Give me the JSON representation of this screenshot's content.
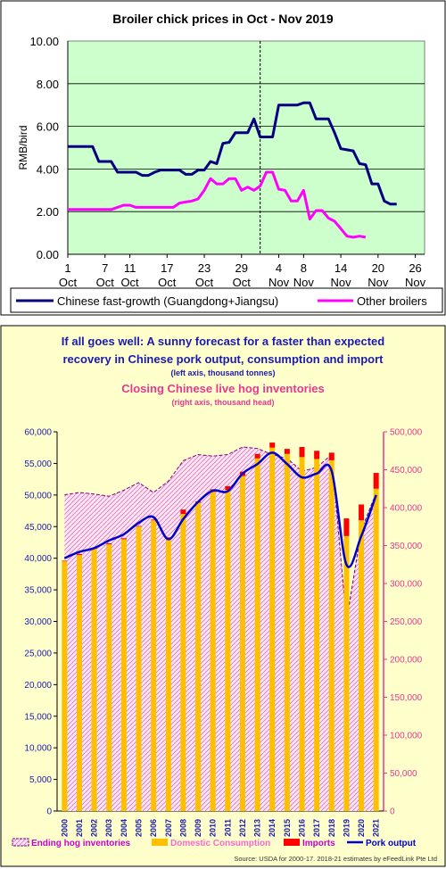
{
  "chart_data": [
    {
      "type": "line",
      "title": "Broiler chick prices in Oct - Nov 2019",
      "ylabel": "RMB/bird",
      "xlabel": "",
      "ylim": [
        0,
        10
      ],
      "yticks": [
        "0.00",
        "2.00",
        "4.00",
        "6.00",
        "8.00",
        "10.00"
      ],
      "xticks": [
        {
          "day": 1,
          "top": "1",
          "bottom": "Oct"
        },
        {
          "day": 7,
          "top": "7",
          "bottom": "Oct"
        },
        {
          "day": 11,
          "top": "11",
          "bottom": "Oct"
        },
        {
          "day": 17,
          "top": "17",
          "bottom": "Oct"
        },
        {
          "day": 23,
          "top": "23",
          "bottom": "Oct"
        },
        {
          "day": 29,
          "top": "29",
          "bottom": "Oct"
        },
        {
          "day": 35,
          "top": "4",
          "bottom": "Nov"
        },
        {
          "day": 39,
          "top": "8",
          "bottom": "Nov"
        },
        {
          "day": 45,
          "top": "14",
          "bottom": "Nov"
        },
        {
          "day": 51,
          "top": "20",
          "bottom": "Nov"
        },
        {
          "day": 57,
          "top": "26",
          "bottom": "Nov"
        }
      ],
      "divider_day": 32,
      "grid": true,
      "background": "#ccffcc",
      "legend_position": "bottom",
      "series": [
        {
          "name": "Chinese fast-growth (Guangdong+Jiangsu)",
          "color": "#000080",
          "points": [
            [
              1,
              5.05
            ],
            [
              2,
              5.05
            ],
            [
              3,
              5.05
            ],
            [
              4,
              5.05
            ],
            [
              5,
              5.05
            ],
            [
              6,
              4.35
            ],
            [
              7,
              4.35
            ],
            [
              8,
              4.35
            ],
            [
              9,
              3.85
            ],
            [
              10,
              3.85
            ],
            [
              11,
              3.85
            ],
            [
              12,
              3.85
            ],
            [
              13,
              3.7
            ],
            [
              14,
              3.7
            ],
            [
              15,
              3.85
            ],
            [
              16,
              3.95
            ],
            [
              17,
              3.95
            ],
            [
              18,
              3.95
            ],
            [
              19,
              3.95
            ],
            [
              20,
              3.75
            ],
            [
              21,
              3.75
            ],
            [
              22,
              3.95
            ],
            [
              23,
              3.95
            ],
            [
              24,
              4.35
            ],
            [
              25,
              4.25
            ],
            [
              26,
              5.2
            ],
            [
              27,
              5.25
            ],
            [
              28,
              5.7
            ],
            [
              29,
              5.7
            ],
            [
              30,
              5.7
            ],
            [
              31,
              6.35
            ],
            [
              32,
              5.5
            ],
            [
              33,
              5.5
            ],
            [
              34,
              5.5
            ],
            [
              35,
              7.0
            ],
            [
              36,
              7.0
            ],
            [
              37,
              7.0
            ],
            [
              38,
              7.0
            ],
            [
              39,
              7.1
            ],
            [
              40,
              7.1
            ],
            [
              41,
              6.35
            ],
            [
              42,
              6.35
            ],
            [
              43,
              6.35
            ],
            [
              44,
              5.7
            ],
            [
              45,
              4.95
            ],
            [
              46,
              4.9
            ],
            [
              47,
              4.85
            ],
            [
              48,
              4.25
            ],
            [
              49,
              4.2
            ],
            [
              50,
              3.3
            ],
            [
              51,
              3.3
            ],
            [
              52,
              2.5
            ],
            [
              53,
              2.35
            ],
            [
              54,
              2.35
            ]
          ]
        },
        {
          "name": "Other broilers",
          "color": "#ff00ff",
          "points": [
            [
              1,
              2.1
            ],
            [
              2,
              2.1
            ],
            [
              3,
              2.1
            ],
            [
              4,
              2.1
            ],
            [
              5,
              2.1
            ],
            [
              6,
              2.1
            ],
            [
              7,
              2.1
            ],
            [
              8,
              2.1
            ],
            [
              9,
              2.2
            ],
            [
              10,
              2.3
            ],
            [
              11,
              2.3
            ],
            [
              12,
              2.2
            ],
            [
              13,
              2.2
            ],
            [
              14,
              2.2
            ],
            [
              15,
              2.2
            ],
            [
              16,
              2.2
            ],
            [
              17,
              2.2
            ],
            [
              18,
              2.2
            ],
            [
              19,
              2.4
            ],
            [
              20,
              2.45
            ],
            [
              21,
              2.5
            ],
            [
              22,
              2.6
            ],
            [
              23,
              3.0
            ],
            [
              24,
              3.55
            ],
            [
              25,
              3.3
            ],
            [
              26,
              3.3
            ],
            [
              27,
              3.55
            ],
            [
              28,
              3.55
            ],
            [
              29,
              3.0
            ],
            [
              30,
              3.15
            ],
            [
              31,
              3.0
            ],
            [
              32,
              3.2
            ],
            [
              33,
              3.85
            ],
            [
              34,
              3.85
            ],
            [
              35,
              3.05
            ],
            [
              36,
              3.0
            ],
            [
              37,
              2.5
            ],
            [
              38,
              2.5
            ],
            [
              39,
              3.0
            ],
            [
              40,
              1.65
            ],
            [
              41,
              2.05
            ],
            [
              42,
              2.05
            ],
            [
              43,
              1.7
            ],
            [
              44,
              1.55
            ],
            [
              45,
              1.2
            ],
            [
              46,
              0.85
            ],
            [
              47,
              0.8
            ],
            [
              48,
              0.85
            ],
            [
              49,
              0.8
            ]
          ]
        }
      ]
    },
    {
      "type": "bar",
      "title_lines": [
        "If all goes well: A sunny forecast for a faster than expected",
        "recovery in Chinese pork output, consumption and import"
      ],
      "subtitle_left": "(left axis, thousand tonnes)",
      "title2": "Closing Chinese live hog inventories",
      "subtitle_right": "(right axis, thousand head)",
      "source": "Source: USDA for 2000-17. 2018-21 estimates by eFeedLink Pte Ltd",
      "categories": [
        "2000",
        "2001",
        "2002",
        "2003",
        "2004",
        "2005",
        "2006",
        "2007",
        "2008",
        "2009",
        "2010",
        "2011",
        "2012",
        "2013",
        "2014",
        "2015",
        "2016",
        "2017",
        "2018",
        "2019",
        "2020",
        "2021"
      ],
      "ylim_left": [
        0,
        60000
      ],
      "yticks_left": [
        "0",
        "5,000",
        "10,000",
        "15,000",
        "20,000",
        "25,000",
        "30,000",
        "35,000",
        "40,000",
        "45,000",
        "50,000",
        "55,000",
        "60,000"
      ],
      "ylim_right": [
        0,
        500000
      ],
      "yticks_right": [
        "0",
        "50,000",
        "100,000",
        "150,000",
        "200,000",
        "250,000",
        "300,000",
        "350,000",
        "400,000",
        "450,000",
        "500,000"
      ],
      "stacked_bars": [
        {
          "name": "Domestic Consumption",
          "color": "#ffc000",
          "values": [
            39500,
            40500,
            41500,
            42200,
            43000,
            45000,
            46000,
            43000,
            47000,
            48800,
            50500,
            50800,
            53000,
            55800,
            57500,
            56500,
            56000,
            55700,
            55500,
            43500,
            46000,
            51000
          ]
        },
        {
          "name": "Imports",
          "color": "#ff0000",
          "values": [
            100,
            150,
            100,
            150,
            150,
            100,
            100,
            300,
            700,
            200,
            400,
            600,
            700,
            700,
            800,
            800,
            1600,
            1300,
            1200,
            2800,
            2500,
            2500
          ]
        }
      ],
      "series": [
        {
          "name": "Pork output",
          "axis": "left",
          "color": "#0000cc",
          "values": [
            40000,
            41000,
            41600,
            42800,
            43800,
            45600,
            46500,
            43000,
            46200,
            48900,
            50700,
            50600,
            53400,
            54900,
            56700,
            54900,
            52800,
            53400,
            53800,
            39000,
            43500,
            50000
          ]
        },
        {
          "name": "Ending hog inventories",
          "axis": "right",
          "color": "#800080",
          "values": [
            417000,
            420000,
            418000,
            415000,
            423000,
            433000,
            420000,
            435000,
            462000,
            470000,
            468000,
            470000,
            480000,
            478000,
            470000,
            465000,
            448000,
            453000,
            470000,
            250000,
            370000,
            420000
          ]
        }
      ],
      "legend": [
        {
          "label": "Ending hog inventories",
          "color": "#cc00cc"
        },
        {
          "label": "Domestic Consumption",
          "color": "#ff66cc"
        },
        {
          "label": "Imports",
          "color": "#cc00cc"
        },
        {
          "label": "Pork output",
          "color": "#0000cc"
        }
      ]
    }
  ]
}
